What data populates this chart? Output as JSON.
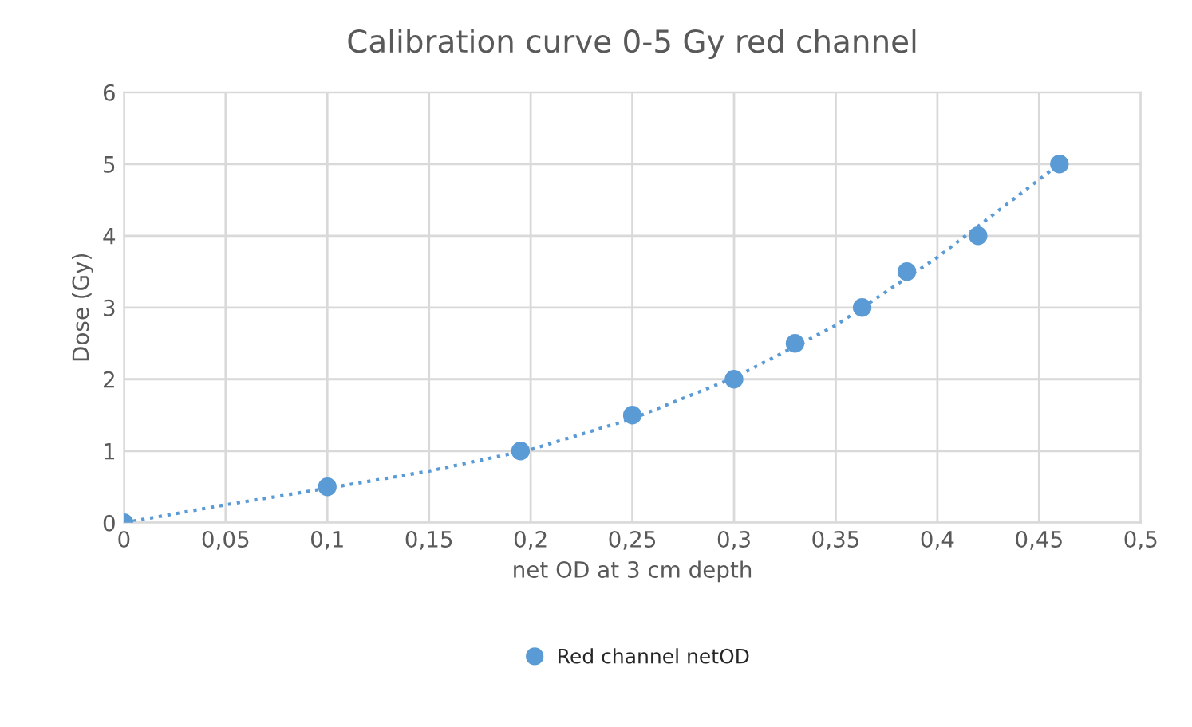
{
  "chart_data": {
    "type": "scatter",
    "title": "Calibration curve 0-5 Gy red channel",
    "xlabel": "net OD at 3 cm depth",
    "ylabel": "Dose (Gy)",
    "x": [
      0,
      0.1,
      0.195,
      0.25,
      0.3,
      0.33,
      0.363,
      0.385,
      0.42,
      0.46
    ],
    "series": [
      {
        "name": "Red channel netOD",
        "color": "#5b9bd5",
        "marker": "circle",
        "values": [
          0,
          0.5,
          1,
          1.5,
          2,
          2.5,
          3,
          3.5,
          4,
          5
        ]
      },
      {
        "type": "line",
        "color": "#5b9bd5",
        "line_style": "dotted",
        "marker": "none",
        "x": [
          0,
          0.05,
          0.1,
          0.15,
          0.2,
          0.25,
          0.3,
          0.35,
          0.4,
          0.46
        ],
        "values": [
          0,
          0.25,
          0.48,
          0.72,
          1.02,
          1.45,
          2.02,
          2.75,
          3.7,
          5
        ]
      }
    ],
    "xlim": [
      0,
      0.5
    ],
    "xticks": [
      0,
      {
        "value": 0.05,
        "label": "0,05"
      },
      {
        "value": 0.1,
        "label": "0,1"
      },
      {
        "value": 0.15,
        "label": "0,15"
      },
      {
        "value": 0.2,
        "label": "0,2"
      },
      {
        "value": 0.25,
        "label": "0,25"
      },
      {
        "value": 0.3,
        "label": "0,3"
      },
      {
        "value": 0.35,
        "label": "0,35"
      },
      {
        "value": 0.4,
        "label": "0,4"
      },
      {
        "value": 0.45,
        "label": "0,45"
      },
      {
        "value": 0.5,
        "label": "0,5"
      }
    ],
    "ylim": [
      0,
      6
    ],
    "yticks": [
      0,
      1,
      2,
      3,
      4,
      5,
      6
    ],
    "grid": true,
    "legend": "bottom"
  }
}
